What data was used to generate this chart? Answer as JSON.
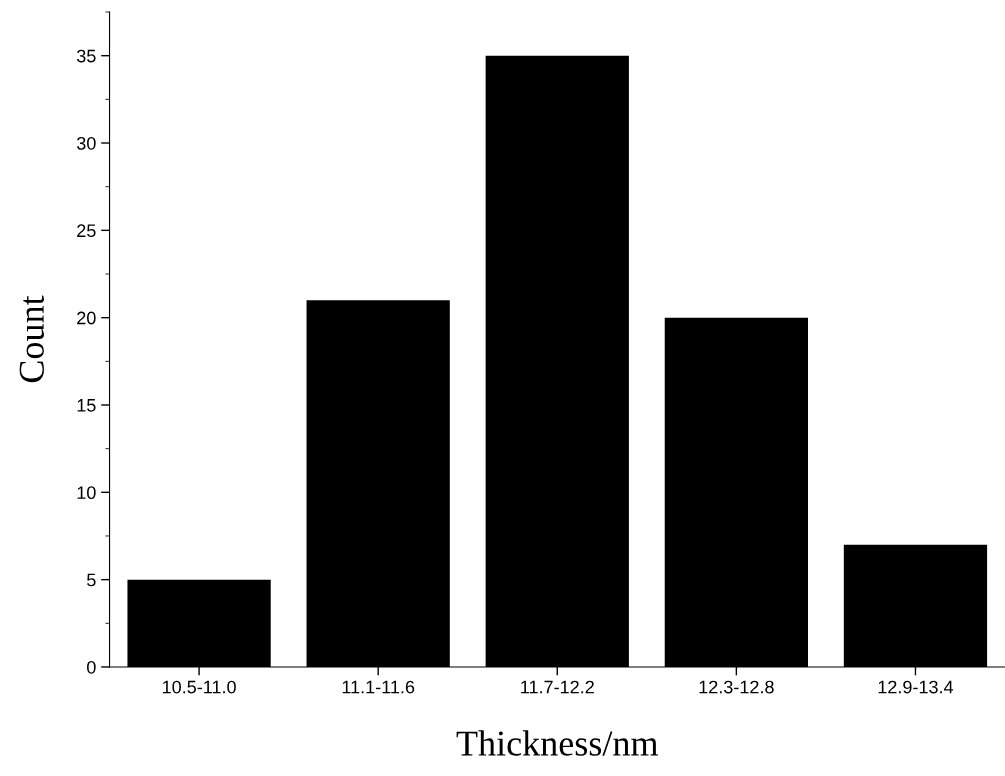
{
  "chart_data": {
    "type": "bar",
    "xlabel": "Thickness/nm",
    "ylabel": "Count",
    "categories": [
      "10.5-11.0",
      "11.1-11.6",
      "11.7-12.2",
      "12.3-12.8",
      "12.9-13.4"
    ],
    "values": [
      5,
      21,
      35,
      20,
      7
    ],
    "color": "#000000",
    "ylim": [
      0,
      37.5
    ],
    "yticks": [
      0,
      5,
      10,
      15,
      20,
      25,
      30,
      35
    ],
    "grid": false
  }
}
